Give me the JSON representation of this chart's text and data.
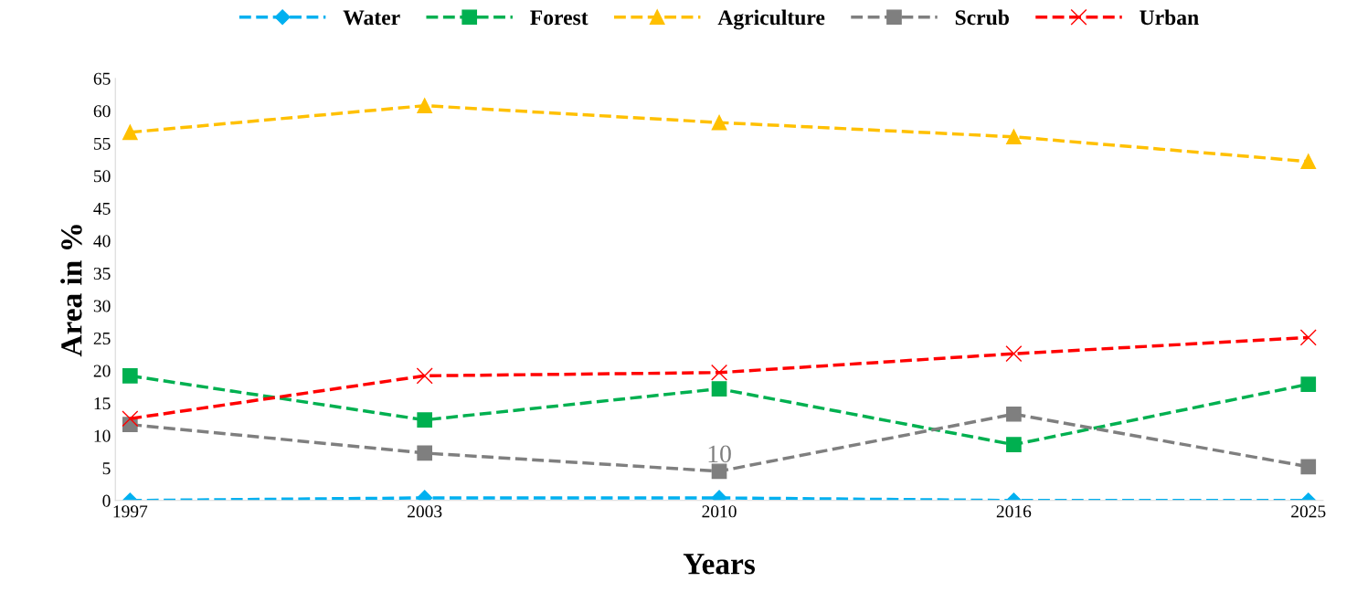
{
  "chart_data": {
    "type": "line",
    "xlabel": "Years",
    "ylabel": "Area in %",
    "categories": [
      "1997",
      "2003",
      "2010",
      "2016",
      "2025"
    ],
    "series": [
      {
        "name": "Water",
        "color": "#00b0f0",
        "marker": "diamond",
        "values": [
          0,
          0.4,
          0.4,
          0,
          0
        ]
      },
      {
        "name": "Forest",
        "color": "#00b050",
        "marker": "square",
        "values": [
          19.2,
          12.4,
          17.2,
          8.6,
          17.9
        ]
      },
      {
        "name": "Agriculture",
        "color": "#ffc000",
        "marker": "triangle",
        "values": [
          56.7,
          60.8,
          58.2,
          56.0,
          52.2
        ]
      },
      {
        "name": "Scrub",
        "color": "#7f7f7f",
        "marker": "square",
        "values": [
          11.7,
          7.3,
          4.5,
          13.3,
          5.2
        ]
      },
      {
        "name": "Urban",
        "color": "#ff0000",
        "marker": "cross",
        "values": [
          12.6,
          19.2,
          19.7,
          22.6,
          25.1
        ]
      }
    ],
    "annotations": [
      "10"
    ],
    "ylim": [
      0,
      65
    ],
    "yticks": [
      0,
      5,
      10,
      15,
      20,
      25,
      30,
      35,
      40,
      45,
      50,
      55,
      60,
      65
    ],
    "line_style": "dashed",
    "grid": false,
    "legend": "top"
  }
}
